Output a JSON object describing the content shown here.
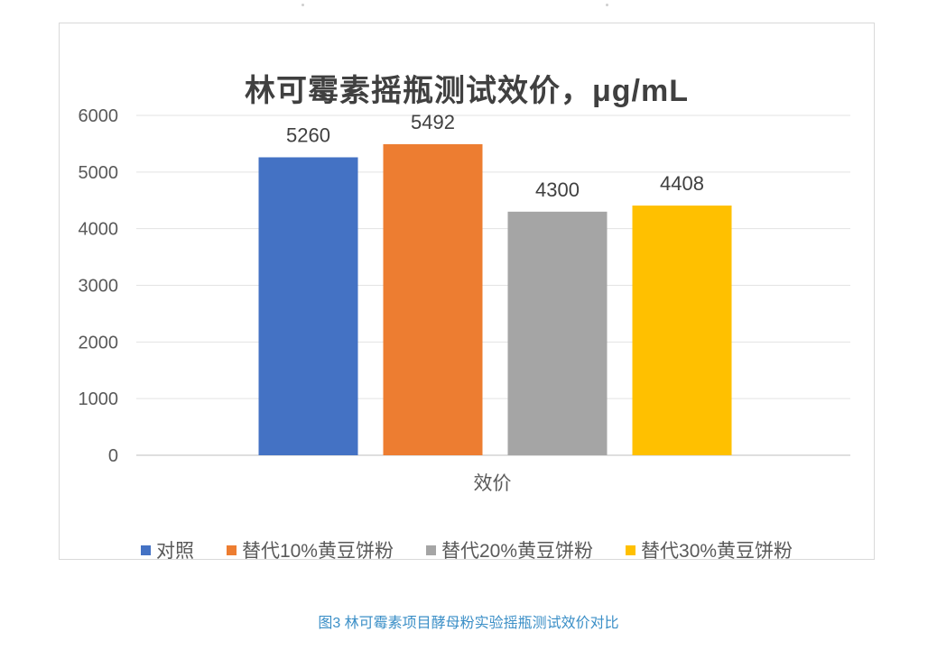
{
  "caption": "图3 林可霉素项目酵母粉实验摇瓶测试效价对比",
  "chart_data": {
    "type": "bar",
    "title": "林可霉素摇瓶测试效价，μg/mL",
    "xlabel": "",
    "ylabel": "",
    "categories": [
      "效价"
    ],
    "ylim": [
      0,
      6000
    ],
    "yticks": [
      "0",
      "1000",
      "2000",
      "3000",
      "4000",
      "5000",
      "6000"
    ],
    "grid": true,
    "legend_position": "bottom",
    "series": [
      {
        "name": "对照",
        "values": [
          5260
        ],
        "color": "#4472c4"
      },
      {
        "name": "替代10%黄豆饼粉",
        "values": [
          5492
        ],
        "color": "#ed7d31"
      },
      {
        "name": "替代20%黄豆饼粉",
        "values": [
          4300
        ],
        "color": "#a5a5a5"
      },
      {
        "name": "替代30%黄豆饼粉",
        "values": [
          4408
        ],
        "color": "#ffc000"
      }
    ]
  }
}
